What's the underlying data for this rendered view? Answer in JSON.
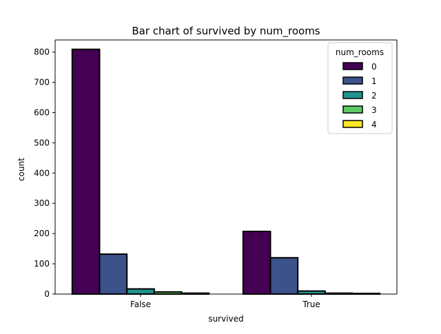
{
  "chart_data": {
    "type": "bar",
    "title": "Bar chart of survived by num_rooms",
    "xlabel": "survived",
    "ylabel": "count",
    "categories": [
      "False",
      "True"
    ],
    "ylim": [
      0,
      840
    ],
    "yticks": [
      0,
      100,
      200,
      300,
      400,
      500,
      600,
      700,
      800
    ],
    "grid": false,
    "legend": {
      "title": "num_rooms",
      "placement": "top-right"
    },
    "series": [
      {
        "name": "0",
        "color": "#440154",
        "values": [
          809,
          207
        ]
      },
      {
        "name": "1",
        "color": "#3b528b",
        "values": [
          132,
          120
        ]
      },
      {
        "name": "2",
        "color": "#21918c",
        "values": [
          17,
          10
        ]
      },
      {
        "name": "3",
        "color": "#5ec962",
        "values": [
          7,
          3
        ]
      },
      {
        "name": "4",
        "color": "#fde725",
        "values": [
          3,
          2
        ]
      }
    ]
  }
}
